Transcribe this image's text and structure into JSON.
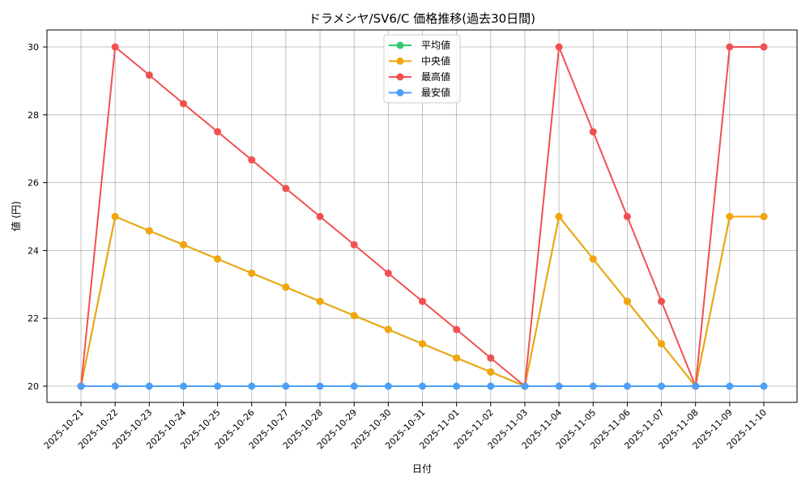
{
  "chart_data": {
    "type": "line",
    "title": "ドラメシヤ/SV6/C 価格推移(過去30日間)",
    "xlabel": "日付",
    "ylabel": "値 (円)",
    "ylim": [
      19.5,
      30.5
    ],
    "yticks": [
      20,
      22,
      24,
      26,
      28,
      30
    ],
    "grid": true,
    "legend_position": "upper center",
    "x": [
      "2025-10-21",
      "2025-10-22",
      "2025-10-23",
      "2025-10-24",
      "2025-10-25",
      "2025-10-26",
      "2025-10-27",
      "2025-10-28",
      "2025-10-29",
      "2025-10-30",
      "2025-10-31",
      "2025-11-01",
      "2025-11-02",
      "2025-11-03",
      "2025-11-04",
      "2025-11-05",
      "2025-11-06",
      "2025-11-07",
      "2025-11-08",
      "2025-11-09",
      "2025-11-10"
    ],
    "series": [
      {
        "name": "平均値",
        "color": "#2ecc71",
        "values": [
          20,
          25,
          24.58,
          24.17,
          23.75,
          23.33,
          22.92,
          22.5,
          22.08,
          21.67,
          21.25,
          20.83,
          20.42,
          20,
          25,
          23.75,
          22.5,
          21.25,
          20,
          25,
          25
        ]
      },
      {
        "name": "中央値",
        "color": "#f5a50b",
        "values": [
          20,
          25,
          24.58,
          24.17,
          23.75,
          23.33,
          22.92,
          22.5,
          22.08,
          21.67,
          21.25,
          20.83,
          20.42,
          20,
          25,
          23.75,
          22.5,
          21.25,
          20,
          25,
          25
        ]
      },
      {
        "name": "最高値",
        "color": "#f25050",
        "values": [
          20,
          30,
          29.17,
          28.33,
          27.5,
          26.67,
          25.83,
          25,
          24.17,
          23.33,
          22.5,
          21.67,
          20.83,
          20,
          30,
          27.5,
          25,
          22.5,
          20,
          30,
          30
        ]
      },
      {
        "name": "最安値",
        "color": "#4d9ff7",
        "values": [
          20,
          20,
          20,
          20,
          20,
          20,
          20,
          20,
          20,
          20,
          20,
          20,
          20,
          20,
          20,
          20,
          20,
          20,
          20,
          20,
          20
        ]
      }
    ]
  }
}
